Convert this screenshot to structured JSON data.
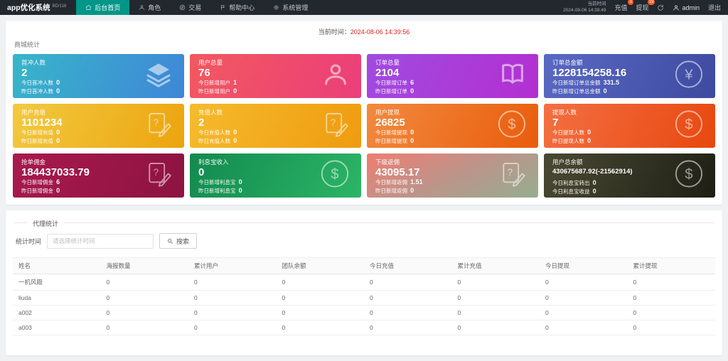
{
  "navbar": {
    "brand": "app优化系统",
    "brand_sup": "BD/118",
    "menu": [
      {
        "label": "后台首页",
        "icon": "home-icon",
        "active": true
      },
      {
        "label": "角色",
        "icon": "user-icon",
        "active": false
      },
      {
        "label": "交易",
        "icon": "exchange-icon",
        "active": false
      },
      {
        "label": "帮助中心",
        "icon": "flag-icon",
        "active": false
      },
      {
        "label": "系统管理",
        "icon": "gear-icon",
        "active": false
      }
    ],
    "time_label": "当前时间",
    "time_value": "2024-08-06 14:39:49",
    "recharge_label": "充值",
    "recharge_badge": "0",
    "withdraw_label": "提现",
    "withdraw_badge": "19",
    "username": "admin",
    "logout_label": "退出",
    "active_color": "#009688",
    "badge_color": "#ff5722"
  },
  "content": {
    "current_time_label": "当前时间：",
    "current_time_value": "2024-08-06 14:39:56",
    "shop_stats_title": "商城统计",
    "cards": [
      {
        "title": "首冲人数",
        "value": "2",
        "icon": "layers-icon",
        "gradient": [
          "#38b6c9",
          "#3f86d8"
        ],
        "lines": [
          {
            "label": "今日首冲人数",
            "value": "0"
          },
          {
            "label": "昨日首冲人数",
            "value": "0"
          }
        ]
      },
      {
        "title": "用户总量",
        "value": "76",
        "icon": "person-icon",
        "gradient": [
          "#f2595f",
          "#eb3e7a"
        ],
        "lines": [
          {
            "label": "今日新增用户",
            "value": "1"
          },
          {
            "label": "昨日新增用户",
            "value": "0"
          }
        ]
      },
      {
        "title": "订单总量",
        "value": "2104",
        "icon": "book-icon",
        "gradient": [
          "#a04be0",
          "#b32fd0"
        ],
        "lines": [
          {
            "label": "今日新增订单",
            "value": "6"
          },
          {
            "label": "昨日新增订单",
            "value": "0"
          }
        ]
      },
      {
        "title": "订单总金额",
        "value": "1228154258.16",
        "icon": "yen-icon",
        "gradient": [
          "#5a69c3",
          "#3d4a9f"
        ],
        "lines": [
          {
            "label": "今日新增订单总金额",
            "value": "331.5"
          },
          {
            "label": "昨日新增订单总金额",
            "value": "0"
          }
        ]
      },
      {
        "title": "用户充值",
        "value": "1101234",
        "icon": "edit-icon",
        "gradient": [
          "#f2ca41",
          "#eca40e"
        ],
        "lines": [
          {
            "label": "今日新增充值",
            "value": "0"
          },
          {
            "label": "昨日新增充值",
            "value": "0"
          }
        ]
      },
      {
        "title": "充值人数",
        "value": "2",
        "icon": "edit-icon",
        "gradient": [
          "#f5bb2d",
          "#ef9b0f"
        ],
        "lines": [
          {
            "label": "今日充值人数",
            "value": "0"
          },
          {
            "label": "昨日充值人数",
            "value": "0"
          }
        ]
      },
      {
        "title": "用户提现",
        "value": "26825",
        "icon": "dollar-icon",
        "gradient": [
          "#f28a3e",
          "#e95c0c"
        ],
        "lines": [
          {
            "label": "今日新增提现",
            "value": "0"
          },
          {
            "label": "昨日新增提现",
            "value": "0"
          }
        ]
      },
      {
        "title": "提现人数",
        "value": "7",
        "icon": "dollar-icon",
        "gradient": [
          "#f37043",
          "#e8470e"
        ],
        "lines": [
          {
            "label": "今日提现人数",
            "value": "0"
          },
          {
            "label": "昨日提现人数",
            "value": "0"
          }
        ]
      },
      {
        "title": "抢单佣金",
        "value": "184437033.79",
        "icon": "edit-icon",
        "gradient": [
          "#a81a4e",
          "#8d1340"
        ],
        "lines": [
          {
            "label": "今日新增佣金",
            "value": "6"
          },
          {
            "label": "昨日新增佣金",
            "value": "0"
          }
        ]
      },
      {
        "title": "利息宝收入",
        "value": "0",
        "icon": "dollar-icon",
        "gradient": [
          "#128a4f",
          "#2cb566"
        ],
        "lines": [
          {
            "label": "今日新增利息宝",
            "value": "0"
          },
          {
            "label": "昨日新增利息宝",
            "value": "0"
          }
        ]
      },
      {
        "title": "下级返佣",
        "value": "43095.17",
        "icon": "edit-icon",
        "gradient": [
          "#ef7d72",
          "#bd948a",
          "#96ad90"
        ],
        "angle": "155deg",
        "lines": [
          {
            "label": "今日新增返佣",
            "value": "1.51"
          },
          {
            "label": "昨日新增返佣",
            "value": "0"
          }
        ]
      },
      {
        "title": "用户总余额",
        "value": "430675687.92(-21562914)",
        "icon": "dollar-icon",
        "gradient": [
          "#4a4a33",
          "#1e1e15"
        ],
        "lines": [
          {
            "label": "今日利息宝转出",
            "value": "0"
          },
          {
            "label": "今日利息宝收益",
            "value": "0"
          }
        ]
      }
    ],
    "agent": {
      "title": "代理统计",
      "time_label": "统计时间",
      "time_placeholder": "请选择统计时间",
      "search_label": "搜索",
      "table": {
        "headers": [
          "姓名",
          "海报数量",
          "累计用户",
          "团队余额",
          "今日充值",
          "累计充值",
          "今日提现",
          "累计提现"
        ],
        "rows": [
          [
            "一机风殿",
            "0",
            "0",
            "0",
            "0",
            "0",
            "0",
            "0"
          ],
          [
            "liuda",
            "0",
            "0",
            "0",
            "0",
            "0",
            "0",
            "0"
          ],
          [
            "a002",
            "0",
            "0",
            "0",
            "0",
            "0",
            "0",
            "0"
          ],
          [
            "a003",
            "0",
            "0",
            "0",
            "0",
            "0",
            "0",
            "0"
          ]
        ]
      }
    }
  }
}
